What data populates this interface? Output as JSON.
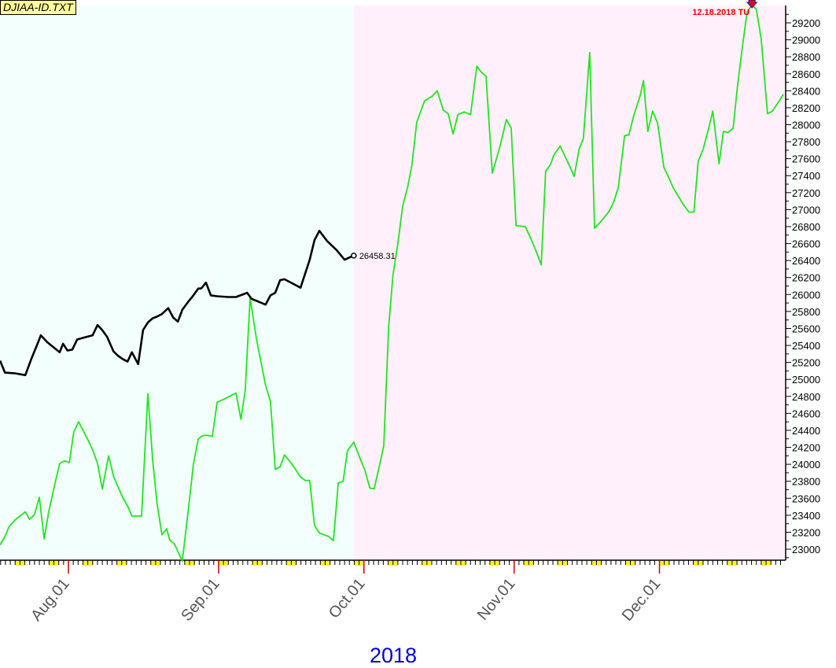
{
  "file_label": "DJIAA-ID.TXT",
  "colors": {
    "history_bg": "#f3fffd",
    "forecast_bg": "#fff0fb",
    "actual_line": "#000000",
    "forecast_line": "#1fe61f",
    "weekend_mark": "#ffff00",
    "month_tick": "#cc0000",
    "year_label": "#0000dd",
    "annotation": "#ee0000"
  },
  "chart_data": {
    "type": "line",
    "title": "",
    "xlabel": "2018",
    "ylabel": "",
    "x_units": "calendar days since Aug 1 2018",
    "xlim": [
      -14.1,
      147.7
    ],
    "ylim": [
      22860,
      29450
    ],
    "grid": false,
    "y_ticks": [
      23000,
      23200,
      23400,
      23600,
      23800,
      24000,
      24200,
      24400,
      24600,
      24800,
      25000,
      25200,
      25400,
      25600,
      25800,
      26000,
      26200,
      26400,
      26600,
      26800,
      27000,
      27200,
      27400,
      27600,
      27800,
      28000,
      28200,
      28400,
      28600,
      28800,
      29000,
      29200
    ],
    "x_ticks": [
      {
        "day": 0,
        "label": "Aug.01"
      },
      {
        "day": 31,
        "label": "Sep.01"
      },
      {
        "day": 61,
        "label": "Oct.01"
      },
      {
        "day": 92,
        "label": "Nov.01"
      },
      {
        "day": 122,
        "label": "Dec.01"
      }
    ],
    "history_end_day": 58.9,
    "series": [
      {
        "name": "actual",
        "points": [
          [
            -14.1,
            25220
          ],
          [
            -13.1,
            25080
          ],
          [
            -10.9,
            25070
          ],
          [
            -8.9,
            25050
          ],
          [
            -7.6,
            25250
          ],
          [
            -6.3,
            25430
          ],
          [
            -5.7,
            25520
          ],
          [
            -4.4,
            25440
          ],
          [
            -3.1,
            25380
          ],
          [
            -1.8,
            25320
          ],
          [
            -1.1,
            25420
          ],
          [
            -0.2,
            25340
          ],
          [
            0.8,
            25350
          ],
          [
            1.8,
            25470
          ],
          [
            3.1,
            25490
          ],
          [
            5.0,
            25520
          ],
          [
            6.0,
            25640
          ],
          [
            7.0,
            25580
          ],
          [
            8.0,
            25500
          ],
          [
            9.3,
            25330
          ],
          [
            10.2,
            25280
          ],
          [
            11.2,
            25240
          ],
          [
            12.2,
            25210
          ],
          [
            13.1,
            25320
          ],
          [
            14.4,
            25180
          ],
          [
            15.4,
            25580
          ],
          [
            16.4,
            25670
          ],
          [
            17.4,
            25720
          ],
          [
            18.3,
            25740
          ],
          [
            19.3,
            25770
          ],
          [
            20.6,
            25840
          ],
          [
            21.6,
            25730
          ],
          [
            22.6,
            25680
          ],
          [
            23.5,
            25820
          ],
          [
            24.8,
            25920
          ],
          [
            25.8,
            25990
          ],
          [
            26.8,
            26070
          ],
          [
            27.4,
            26070
          ],
          [
            28.4,
            26140
          ],
          [
            29.4,
            25990
          ],
          [
            30.7,
            25980
          ],
          [
            33.0,
            25970
          ],
          [
            34.6,
            25970
          ],
          [
            36.9,
            26020
          ],
          [
            37.8,
            25950
          ],
          [
            40.7,
            25880
          ],
          [
            41.7,
            25990
          ],
          [
            42.7,
            26020
          ],
          [
            43.7,
            26170
          ],
          [
            44.6,
            26180
          ],
          [
            45.6,
            26150
          ],
          [
            46.9,
            26110
          ],
          [
            47.9,
            26080
          ],
          [
            49.8,
            26410
          ],
          [
            50.8,
            26640
          ],
          [
            51.8,
            26750
          ],
          [
            53.4,
            26630
          ],
          [
            55.4,
            26520
          ],
          [
            57.0,
            26410
          ],
          [
            58.9,
            26458.31
          ]
        ],
        "last_value_label": "26458.31"
      },
      {
        "name": "forecast",
        "points": [
          [
            -14.1,
            23050
          ],
          [
            -13.1,
            23150
          ],
          [
            -12.2,
            23270
          ],
          [
            -10.9,
            23350
          ],
          [
            -8.9,
            23440
          ],
          [
            -8.0,
            23350
          ],
          [
            -7.0,
            23410
          ],
          [
            -6.0,
            23610
          ],
          [
            -5.0,
            23120
          ],
          [
            -4.1,
            23430
          ],
          [
            -2.8,
            23770
          ],
          [
            -1.8,
            24010
          ],
          [
            -0.8,
            24040
          ],
          [
            0.2,
            24020
          ],
          [
            1.1,
            24380
          ],
          [
            2.1,
            24500
          ],
          [
            3.1,
            24390
          ],
          [
            4.1,
            24280
          ],
          [
            5.0,
            24170
          ],
          [
            6.0,
            24010
          ],
          [
            7.0,
            23710
          ],
          [
            8.3,
            24100
          ],
          [
            9.3,
            23860
          ],
          [
            10.2,
            23740
          ],
          [
            11.2,
            23610
          ],
          [
            12.2,
            23510
          ],
          [
            13.1,
            23390
          ],
          [
            15.1,
            23390
          ],
          [
            16.4,
            24830
          ],
          [
            17.4,
            24040
          ],
          [
            18.3,
            23540
          ],
          [
            19.3,
            23170
          ],
          [
            20.3,
            23240
          ],
          [
            20.9,
            23110
          ],
          [
            21.9,
            23060
          ],
          [
            23.5,
            22860
          ],
          [
            24.8,
            23490
          ],
          [
            25.8,
            24000
          ],
          [
            26.8,
            24300
          ],
          [
            27.8,
            24340
          ],
          [
            28.7,
            24340
          ],
          [
            29.7,
            24330
          ],
          [
            30.7,
            24730
          ],
          [
            32.6,
            24780
          ],
          [
            34.6,
            24840
          ],
          [
            35.6,
            24530
          ],
          [
            36.5,
            24870
          ],
          [
            37.5,
            25960
          ],
          [
            38.8,
            25480
          ],
          [
            40.7,
            24930
          ],
          [
            41.7,
            24740
          ],
          [
            42.7,
            23940
          ],
          [
            43.7,
            23970
          ],
          [
            44.6,
            24110
          ],
          [
            45.9,
            24020
          ],
          [
            46.9,
            23940
          ],
          [
            47.9,
            23850
          ],
          [
            48.9,
            23810
          ],
          [
            49.8,
            23810
          ],
          [
            50.8,
            23280
          ],
          [
            51.8,
            23190
          ],
          [
            53.7,
            23150
          ],
          [
            54.7,
            23100
          ],
          [
            55.7,
            23780
          ],
          [
            56.7,
            23800
          ],
          [
            57.6,
            24160
          ],
          [
            58.9,
            24260
          ],
          [
            60.2,
            24070
          ],
          [
            61.2,
            23930
          ],
          [
            62.2,
            23720
          ],
          [
            63.1,
            23710
          ],
          [
            64.1,
            23960
          ],
          [
            65.1,
            24220
          ],
          [
            66.1,
            25620
          ],
          [
            67.0,
            26230
          ],
          [
            68.0,
            26600
          ],
          [
            69.0,
            27040
          ],
          [
            70.0,
            27260
          ],
          [
            70.9,
            27520
          ],
          [
            71.9,
            28030
          ],
          [
            73.5,
            28280
          ],
          [
            75.2,
            28340
          ],
          [
            76.1,
            28400
          ],
          [
            77.4,
            28170
          ],
          [
            78.4,
            28130
          ],
          [
            79.4,
            27890
          ],
          [
            80.4,
            28120
          ],
          [
            81.7,
            28150
          ],
          [
            83.0,
            28120
          ],
          [
            84.3,
            28690
          ],
          [
            85.2,
            28620
          ],
          [
            86.2,
            28570
          ],
          [
            87.5,
            27430
          ],
          [
            89.1,
            27750
          ],
          [
            90.4,
            28060
          ],
          [
            91.4,
            27960
          ],
          [
            92.4,
            26810
          ],
          [
            94.3,
            26800
          ],
          [
            95.6,
            26640
          ],
          [
            96.6,
            26500
          ],
          [
            97.6,
            26350
          ],
          [
            98.5,
            27450
          ],
          [
            99.5,
            27530
          ],
          [
            100.2,
            27640
          ],
          [
            101.5,
            27750
          ],
          [
            102.4,
            27640
          ],
          [
            103.4,
            27520
          ],
          [
            104.4,
            27390
          ],
          [
            105.4,
            27710
          ],
          [
            106.3,
            27840
          ],
          [
            107.6,
            28850
          ],
          [
            108.6,
            26780
          ],
          [
            109.9,
            26860
          ],
          [
            111.5,
            26970
          ],
          [
            112.5,
            27080
          ],
          [
            113.5,
            27260
          ],
          [
            114.8,
            27870
          ],
          [
            115.7,
            27880
          ],
          [
            116.7,
            28110
          ],
          [
            118.0,
            28340
          ],
          [
            118.7,
            28520
          ],
          [
            119.6,
            27920
          ],
          [
            120.6,
            28160
          ],
          [
            121.6,
            28020
          ],
          [
            122.9,
            27500
          ],
          [
            123.9,
            27380
          ],
          [
            124.8,
            27260
          ],
          [
            126.8,
            27070
          ],
          [
            128.1,
            26970
          ],
          [
            129.1,
            26970
          ],
          [
            130.0,
            27570
          ],
          [
            131.0,
            27710
          ],
          [
            132.3,
            27990
          ],
          [
            133.0,
            28160
          ],
          [
            134.3,
            27540
          ],
          [
            135.2,
            27920
          ],
          [
            136.2,
            27910
          ],
          [
            137.2,
            27960
          ],
          [
            138.1,
            28450
          ],
          [
            139.1,
            28910
          ],
          [
            140.1,
            29330
          ],
          [
            141.1,
            29410
          ],
          [
            142.0,
            29360
          ],
          [
            143.0,
            29010
          ],
          [
            144.3,
            28130
          ],
          [
            145.3,
            28160
          ],
          [
            146.6,
            28270
          ],
          [
            147.6,
            28360
          ]
        ]
      }
    ],
    "annotations": [
      {
        "text": "12.18.2018 TU",
        "day": 141.1,
        "value": 29410,
        "marker": "down-arrow"
      }
    ]
  }
}
